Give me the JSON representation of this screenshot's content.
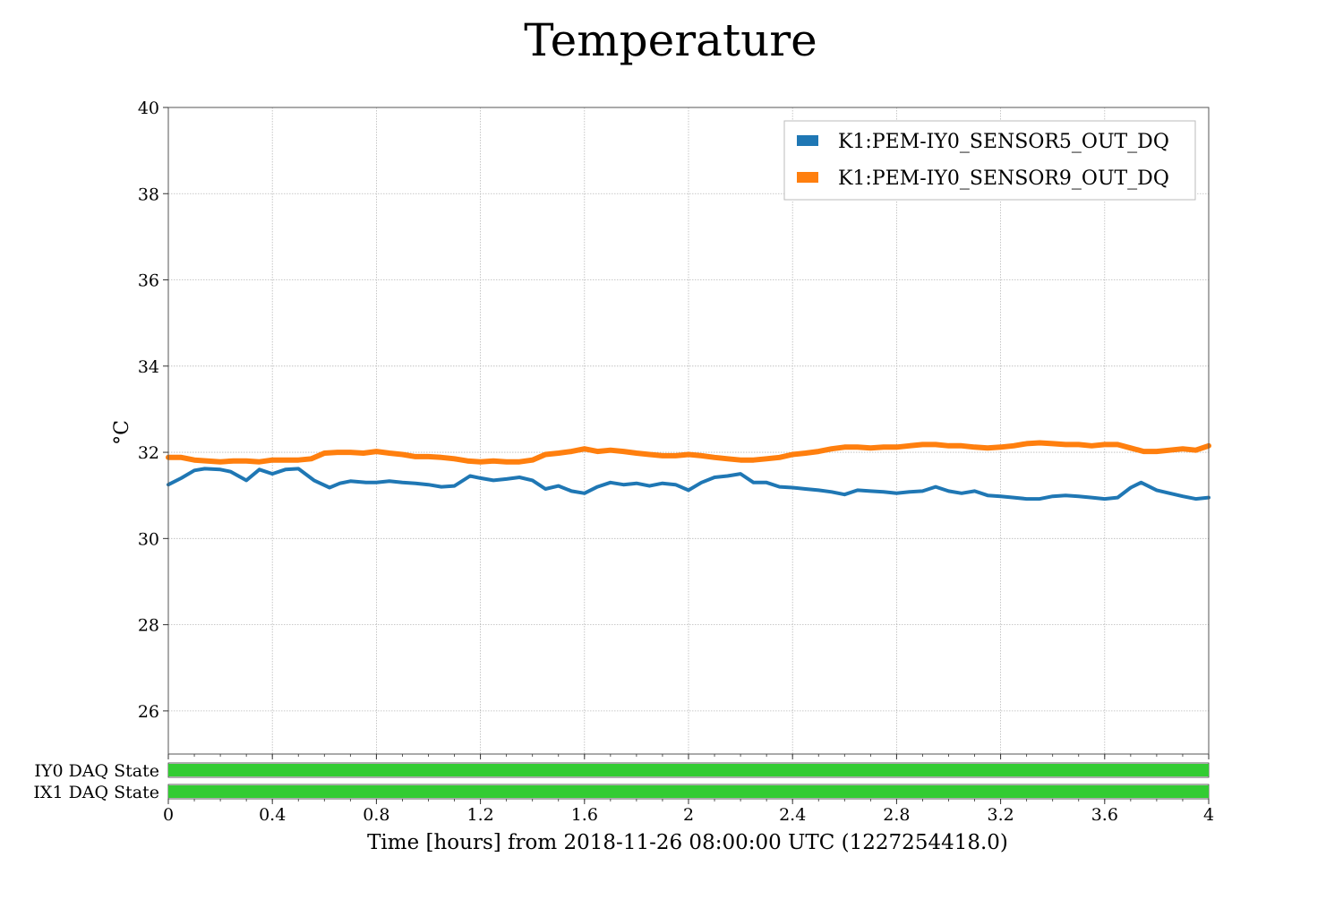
{
  "chart_data": {
    "type": "line",
    "title": "Temperature",
    "xlabel": "Time [hours] from 2018-11-26 08:00:00 UTC (1227254418.0)",
    "ylabel": "°C",
    "xlim": [
      0,
      4
    ],
    "ylim": [
      25,
      40
    ],
    "xticks": [
      0,
      0.4,
      0.8,
      1.2,
      1.6,
      2,
      2.4,
      2.8,
      3.2,
      3.6,
      4
    ],
    "xtick_labels": [
      "0",
      "0.4",
      "0.8",
      "1.2",
      "1.6",
      "2",
      "2.4",
      "2.8",
      "3.2",
      "3.6",
      "4"
    ],
    "yticks": [
      26,
      28,
      30,
      32,
      34,
      36,
      38,
      40
    ],
    "ytick_labels": [
      "26",
      "28",
      "30",
      "32",
      "34",
      "36",
      "38",
      "40"
    ],
    "grid": true,
    "legend_position": "top-right",
    "series": [
      {
        "name": "K1:PEM-IY0_SENSOR5_OUT_DQ",
        "color": "#1f77b4",
        "x": [
          0,
          0.05,
          0.1,
          0.14,
          0.2,
          0.24,
          0.3,
          0.35,
          0.4,
          0.45,
          0.5,
          0.56,
          0.62,
          0.66,
          0.7,
          0.76,
          0.8,
          0.85,
          0.9,
          0.95,
          1.0,
          1.05,
          1.1,
          1.16,
          1.2,
          1.25,
          1.3,
          1.35,
          1.4,
          1.45,
          1.5,
          1.55,
          1.6,
          1.65,
          1.7,
          1.75,
          1.8,
          1.85,
          1.9,
          1.95,
          2.0,
          2.05,
          2.1,
          2.15,
          2.2,
          2.25,
          2.3,
          2.35,
          2.4,
          2.45,
          2.5,
          2.55,
          2.6,
          2.65,
          2.7,
          2.75,
          2.8,
          2.85,
          2.9,
          2.95,
          3.0,
          3.05,
          3.1,
          3.15,
          3.2,
          3.25,
          3.3,
          3.35,
          3.4,
          3.45,
          3.5,
          3.55,
          3.6,
          3.65,
          3.7,
          3.74,
          3.8,
          3.85,
          3.9,
          3.95,
          4.0
        ],
        "y": [
          31.25,
          31.4,
          31.58,
          31.62,
          31.6,
          31.55,
          31.35,
          31.6,
          31.5,
          31.6,
          31.62,
          31.35,
          31.18,
          31.28,
          31.33,
          31.3,
          31.3,
          31.33,
          31.3,
          31.28,
          31.25,
          31.2,
          31.22,
          31.45,
          31.4,
          31.35,
          31.38,
          31.42,
          31.35,
          31.15,
          31.22,
          31.1,
          31.05,
          31.2,
          31.3,
          31.25,
          31.28,
          31.22,
          31.28,
          31.25,
          31.12,
          31.3,
          31.42,
          31.45,
          31.5,
          31.3,
          31.3,
          31.2,
          31.18,
          31.15,
          31.12,
          31.08,
          31.02,
          31.12,
          31.1,
          31.08,
          31.05,
          31.08,
          31.1,
          31.2,
          31.1,
          31.05,
          31.1,
          31.0,
          30.98,
          30.95,
          30.92,
          30.92,
          30.98,
          31.0,
          30.98,
          30.95,
          30.92,
          30.95,
          31.18,
          31.3,
          31.12,
          31.05,
          30.98,
          30.92,
          30.95
        ]
      },
      {
        "name": "K1:PEM-IY0_SENSOR9_OUT_DQ",
        "color": "#ff7f0e",
        "x": [
          0,
          0.05,
          0.1,
          0.15,
          0.2,
          0.25,
          0.3,
          0.35,
          0.4,
          0.45,
          0.5,
          0.55,
          0.6,
          0.65,
          0.7,
          0.75,
          0.8,
          0.85,
          0.9,
          0.95,
          1.0,
          1.05,
          1.1,
          1.15,
          1.2,
          1.25,
          1.3,
          1.35,
          1.4,
          1.45,
          1.5,
          1.55,
          1.6,
          1.65,
          1.7,
          1.75,
          1.8,
          1.85,
          1.9,
          1.95,
          2.0,
          2.05,
          2.1,
          2.15,
          2.2,
          2.25,
          2.3,
          2.35,
          2.4,
          2.45,
          2.5,
          2.55,
          2.6,
          2.65,
          2.7,
          2.75,
          2.8,
          2.85,
          2.9,
          2.95,
          3.0,
          3.05,
          3.1,
          3.15,
          3.2,
          3.25,
          3.3,
          3.35,
          3.4,
          3.45,
          3.5,
          3.55,
          3.6,
          3.65,
          3.7,
          3.75,
          3.8,
          3.85,
          3.9,
          3.95,
          4.0
        ],
        "y": [
          31.88,
          31.88,
          31.82,
          31.8,
          31.78,
          31.8,
          31.8,
          31.78,
          31.82,
          31.82,
          31.82,
          31.85,
          31.98,
          32.0,
          32.0,
          31.98,
          32.02,
          31.98,
          31.95,
          31.9,
          31.9,
          31.88,
          31.85,
          31.8,
          31.78,
          31.8,
          31.78,
          31.78,
          31.82,
          31.95,
          31.98,
          32.02,
          32.08,
          32.02,
          32.05,
          32.02,
          31.98,
          31.95,
          31.92,
          31.92,
          31.95,
          31.92,
          31.88,
          31.85,
          31.82,
          31.82,
          31.85,
          31.88,
          31.95,
          31.98,
          32.02,
          32.08,
          32.12,
          32.12,
          32.1,
          32.12,
          32.12,
          32.15,
          32.18,
          32.18,
          32.15,
          32.15,
          32.12,
          32.1,
          32.12,
          32.15,
          32.2,
          32.22,
          32.2,
          32.18,
          32.18,
          32.15,
          32.18,
          32.18,
          32.1,
          32.02,
          32.02,
          32.05,
          32.08,
          32.05,
          32.15
        ]
      }
    ],
    "state_bars": [
      {
        "label": "IY0 DAQ State",
        "color": "#33cc33",
        "segments": [
          [
            0,
            4
          ]
        ]
      },
      {
        "label": "IX1 DAQ State",
        "color": "#33cc33",
        "segments": [
          [
            0,
            4
          ]
        ]
      }
    ]
  }
}
